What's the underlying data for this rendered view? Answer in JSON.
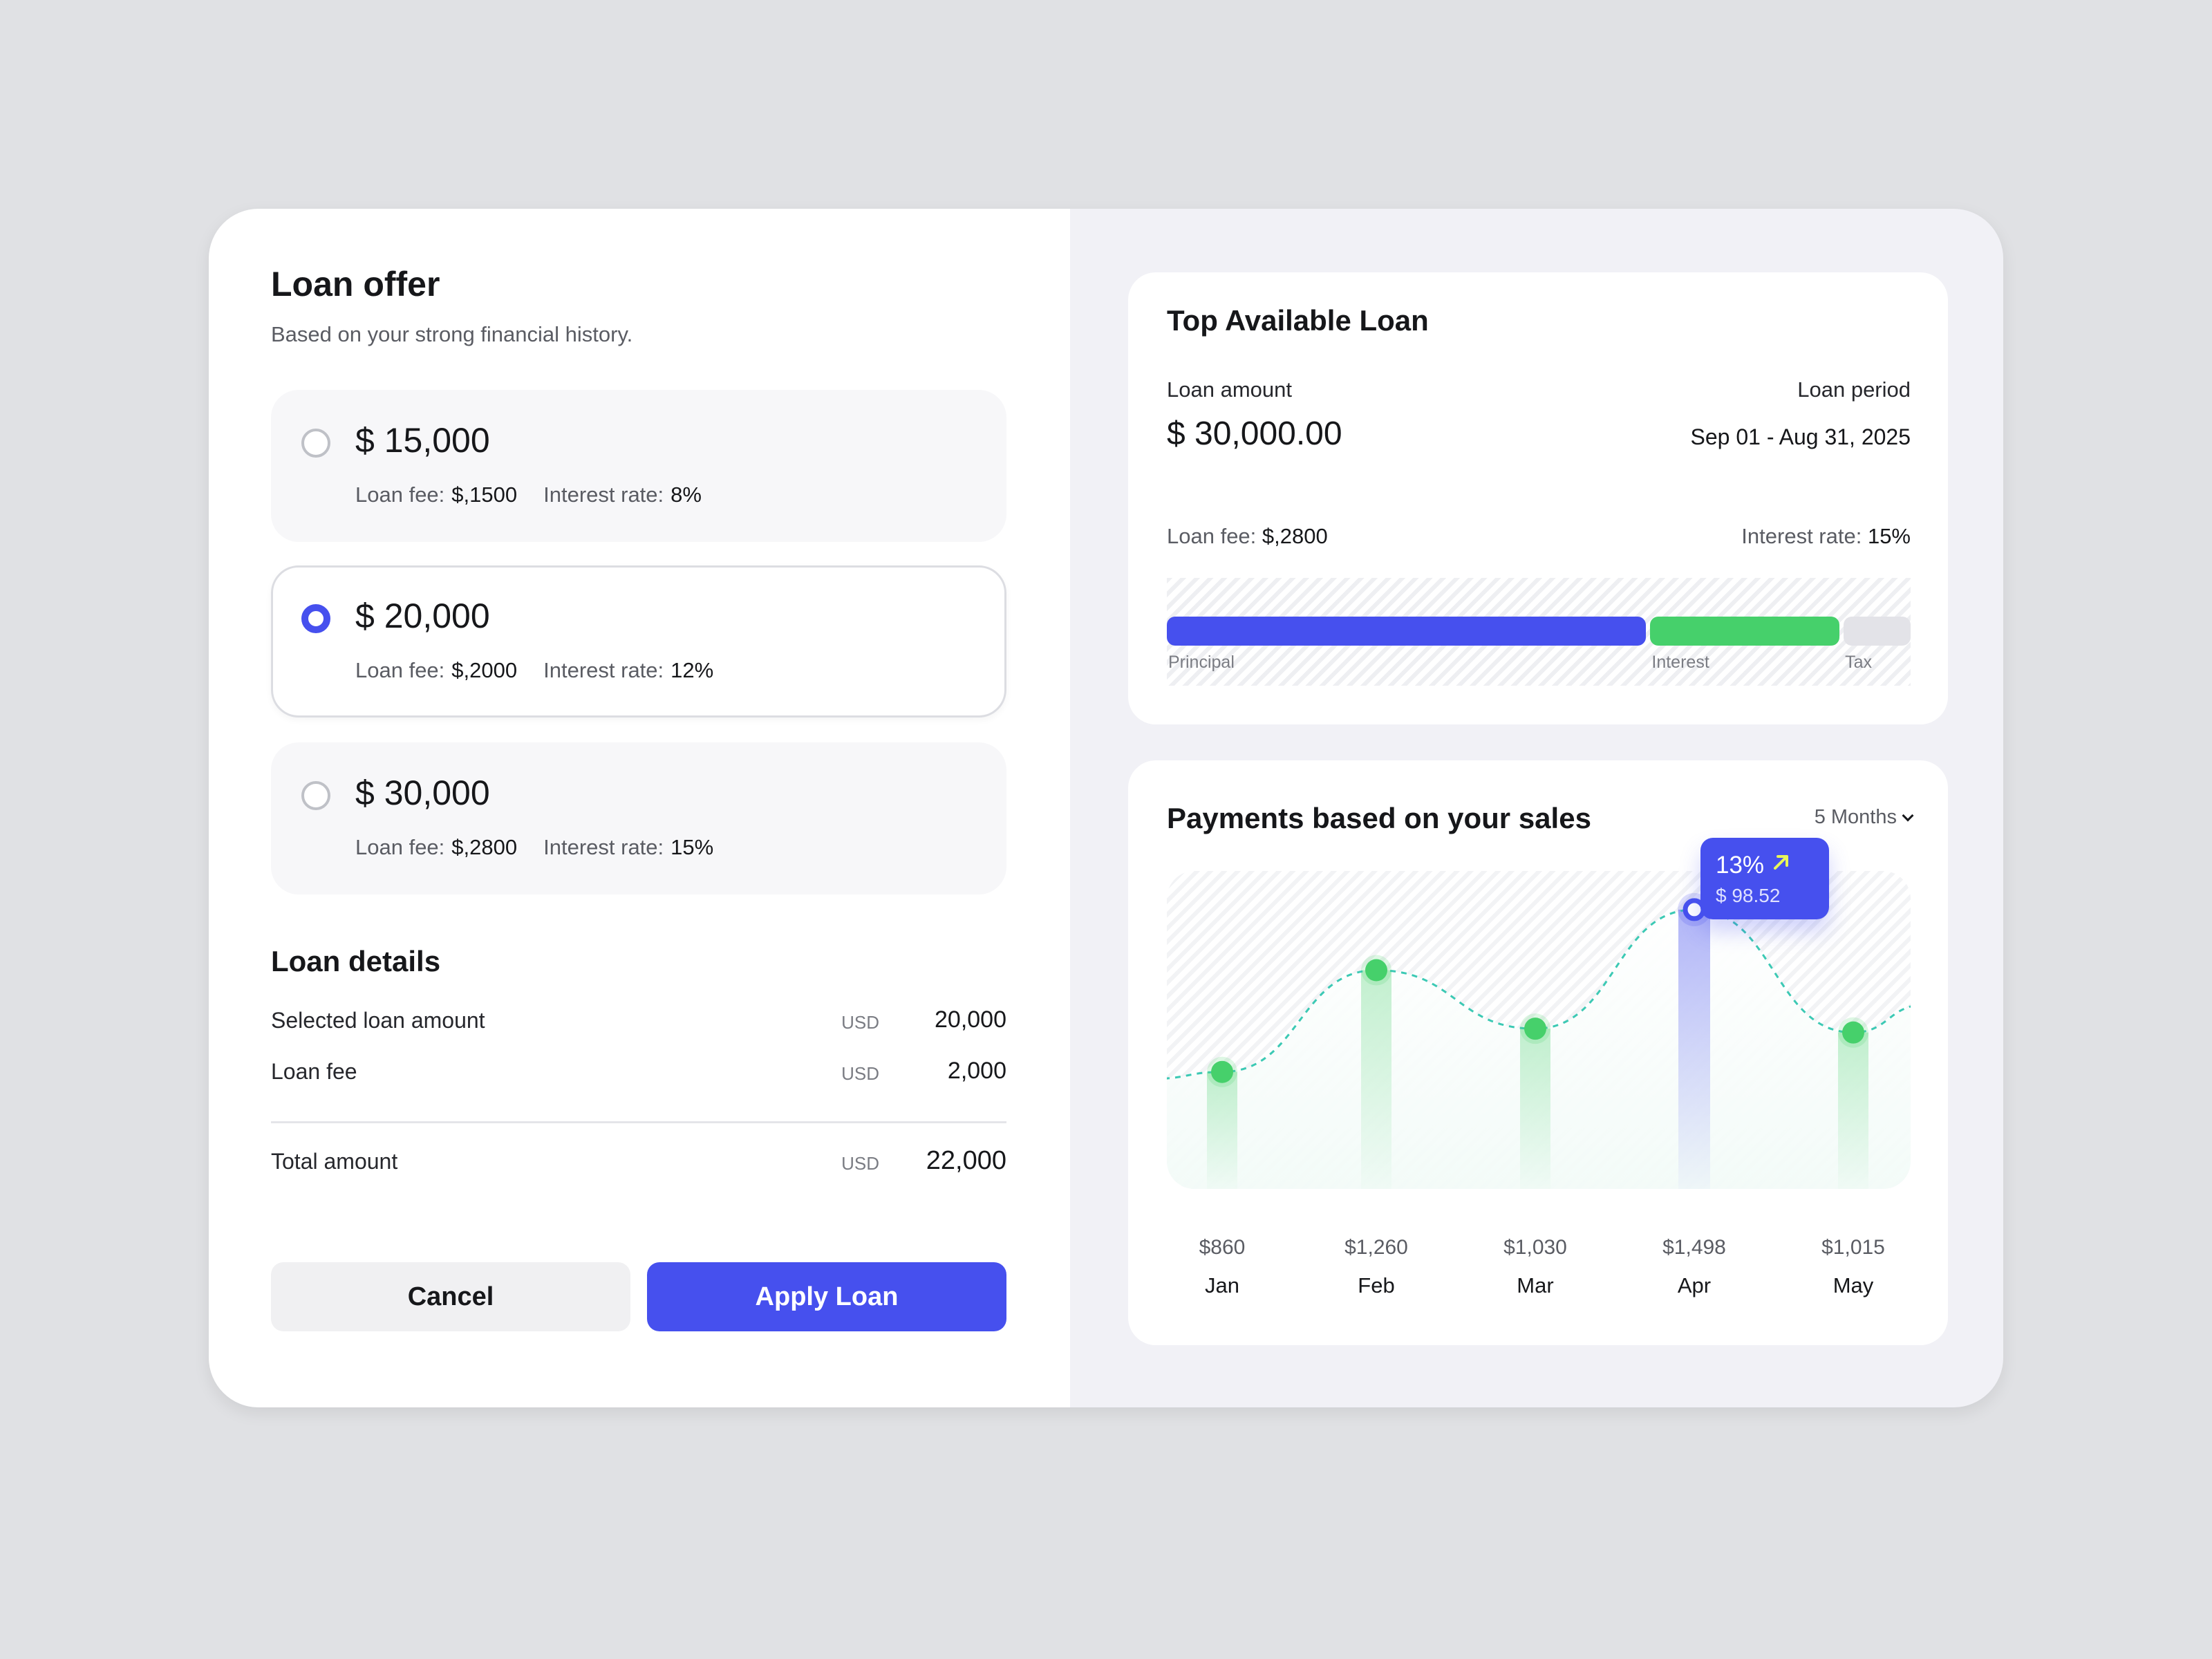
{
  "loan_offer": {
    "title": "Loan offer",
    "subtitle": "Based on your strong financial history.",
    "options": [
      {
        "amount": "$ 15,000",
        "fee_label": "Loan fee:",
        "fee": "$,1500",
        "rate_label": "Interest rate:",
        "rate": "8%",
        "selected": false
      },
      {
        "amount": "$ 20,000",
        "fee_label": "Loan fee:",
        "fee": "$,2000",
        "rate_label": "Interest rate:",
        "rate": "12%",
        "selected": true
      },
      {
        "amount": "$ 30,000",
        "fee_label": "Loan fee:",
        "fee": "$,2800",
        "rate_label": "Interest rate:",
        "rate": "15%",
        "selected": false
      }
    ]
  },
  "loan_details": {
    "title": "Loan details",
    "rows": [
      {
        "label": "Selected loan amount",
        "currency": "USD",
        "value": "20,000"
      },
      {
        "label": "Loan fee",
        "currency": "USD",
        "value": "2,000"
      }
    ],
    "total": {
      "label": "Total amount",
      "currency": "USD",
      "value": "22,000"
    }
  },
  "actions": {
    "cancel": "Cancel",
    "apply": "Apply Loan"
  },
  "top_loan": {
    "title": "Top Available Loan",
    "amount_label": "Loan amount",
    "amount": "$ 30,000.00",
    "period_label": "Loan period",
    "period": "Sep 01 - Aug 31, 2025",
    "fee_label": "Loan fee:",
    "fee": "$,2800",
    "rate_label": "Interest rate:",
    "rate": "15%",
    "breakdown": [
      {
        "label": "Principal",
        "fraction": 0.65,
        "color": "#4650ee"
      },
      {
        "label": "Interest",
        "fraction": 0.26,
        "color": "#46d06b"
      },
      {
        "label": "Tax",
        "fraction": 0.09,
        "color": "#e3e3e8"
      }
    ]
  },
  "payments": {
    "title": "Payments based on your sales",
    "range": "5 Months",
    "tooltip": {
      "percent": "13%",
      "amount": "$ 98.52"
    },
    "colors": {
      "accent": "#4650ee",
      "bar": "#46d06b",
      "line": "#3cc9b4"
    }
  },
  "chart_data": {
    "type": "line",
    "categories": [
      "Jan",
      "Feb",
      "Mar",
      "Apr",
      "May"
    ],
    "value_labels": [
      "$860",
      "$1,260",
      "$1,030",
      "$1,498",
      "$1,015"
    ],
    "values": [
      860,
      1260,
      1030,
      1498,
      1015
    ],
    "highlight_index": 3,
    "ylim": [
      400,
      1650
    ],
    "grid": false,
    "legend": "none"
  }
}
